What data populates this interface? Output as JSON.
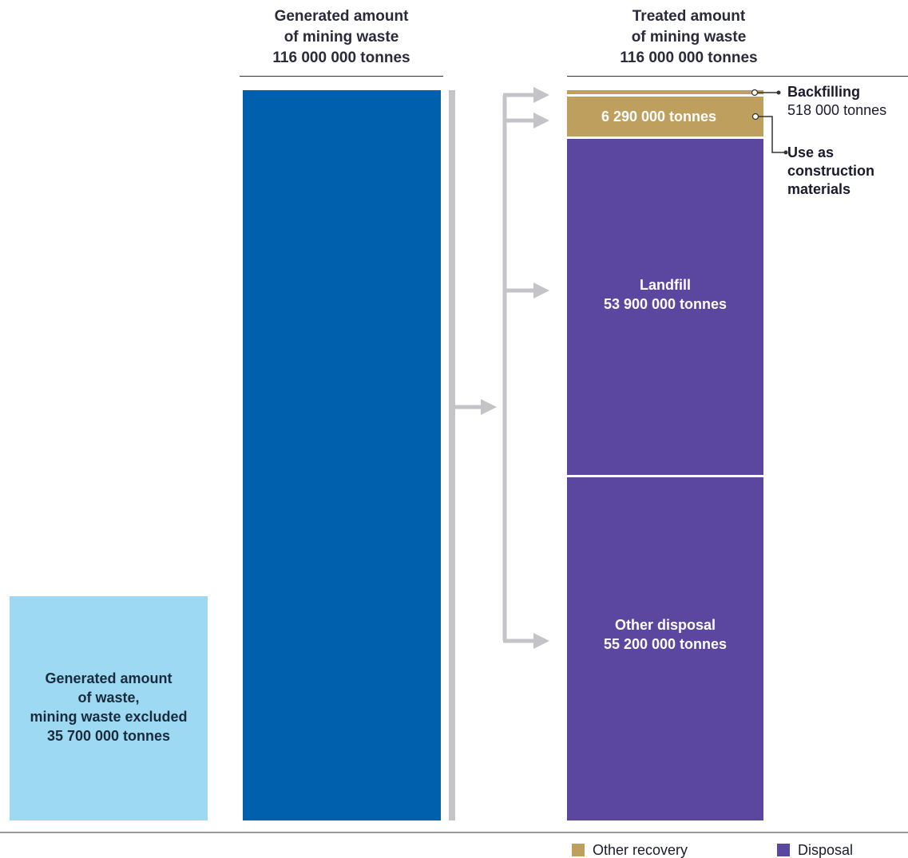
{
  "chart_data": {
    "type": "bar",
    "generated": {
      "title_lines": [
        "Generated amount",
        "of mining waste",
        "116 000 000 tonnes"
      ],
      "value": 116000000,
      "color": "#0060AE"
    },
    "excluded": {
      "label_lines": [
        "Generated amount",
        "of waste,",
        "mining waste excluded",
        "35 700 000 tonnes"
      ],
      "value": 35700000,
      "color": "#9ED9F3"
    },
    "treated": {
      "title_lines": [
        "Treated amount",
        "of mining waste",
        "116 000 000 tonnes"
      ],
      "segments": [
        {
          "name": "Backfilling",
          "value_label": "518 000 tonnes",
          "value": 518000,
          "group": "Other recovery"
        },
        {
          "name": "Use as construction materials",
          "value_label": "6 290 000 tonnes",
          "value": 6290000,
          "group": "Other recovery"
        },
        {
          "name": "Landfill",
          "value_label": "53 900 000 tonnes",
          "value": 53900000,
          "group": "Disposal"
        },
        {
          "name": "Other disposal",
          "value_label": "55 200 000 tonnes",
          "value": 55200000,
          "group": "Disposal"
        }
      ]
    },
    "callouts": {
      "backfilling": {
        "name": "Backfilling",
        "value": "518 000 tonnes"
      },
      "construction": {
        "lines": [
          "Use as",
          "construction",
          "materials"
        ]
      }
    },
    "legend": [
      {
        "label": "Other recovery",
        "color": "#BF9F5E"
      },
      {
        "label": "Disposal",
        "color": "#5B47A0"
      }
    ],
    "colors": {
      "arrow": "#C4C4C8",
      "rule": "#333333"
    }
  }
}
